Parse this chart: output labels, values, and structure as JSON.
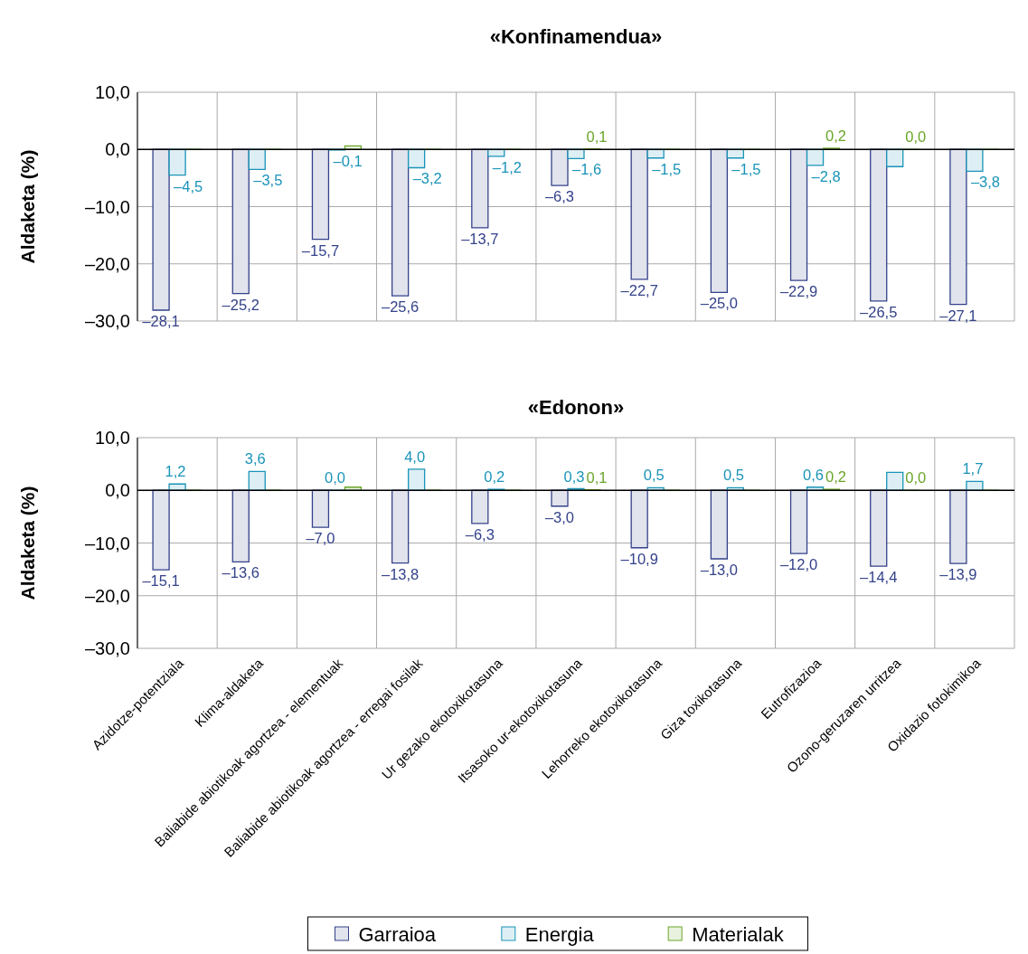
{
  "chart_data": [
    {
      "type": "bar",
      "title": "«Konfinamendua»",
      "ylabel": "Aldaketa (%)",
      "categories": [
        null,
        null,
        null,
        null,
        null,
        null,
        null,
        null,
        null,
        null,
        null
      ],
      "series": [
        {
          "color": "#34428a",
          "values": [
            -28.1,
            -25.2,
            -15.7,
            -25.6,
            -13.7,
            -6.3,
            -22.7,
            -25.0,
            -22.9,
            -26.5,
            -27.1
          ],
          "value_labels": [
            "–28,1",
            "–25,2",
            "–15,7",
            "–25,6",
            "–13,7",
            "–6,3",
            "–22,7",
            "–25,0",
            "–22,9",
            "–26,5",
            "–27,1"
          ]
        },
        {
          "color": "#1a94b8",
          "values": [
            -4.5,
            -3.5,
            -0.1,
            -3.2,
            -1.2,
            -1.6,
            -1.5,
            -1.5,
            -2.8,
            -3.0,
            -3.8
          ],
          "value_labels": [
            "–4,5",
            "–3,5",
            "–0,1",
            "–3,2",
            "–1,2",
            "–1,6",
            "–1,5",
            "–1,5",
            "–2,8",
            null,
            "–3,8"
          ]
        },
        {
          "color": "#6aa52a",
          "values": [
            0,
            0,
            0.6,
            0,
            0,
            0.1,
            0,
            0,
            0.2,
            0.0,
            0
          ],
          "value_labels": [
            null,
            null,
            null,
            null,
            null,
            "0,1",
            null,
            null,
            "0,2",
            "0,0",
            null
          ]
        }
      ],
      "ylim": [
        -30,
        10
      ],
      "yticks": [
        {
          "value": -30,
          "label": "–30,0"
        },
        {
          "value": -20,
          "label": "–20,0"
        },
        {
          "value": -10,
          "label": "–10,0"
        },
        {
          "value": 0,
          "label": "0,0"
        },
        {
          "value": 10,
          "label": "10,0"
        }
      ],
      "grid": true,
      "legend": false
    },
    {
      "type": "bar",
      "title": "«Edonon»",
      "ylabel": "Aldaketa (%)",
      "categories": [
        "Azidotze-potentziala",
        "Klima-aldaketa",
        "Baliabide abiotikoak agortzea - elementuak",
        "Baliabide abiotikoak agortzea - erregai fosilak",
        "Ur gezako ekotoxikotasuna",
        "Itsasoko ur-ekotoxikotasuna",
        "Lehorreko ekotoxikotasuna",
        "Giza toxikotasuna",
        "Eutrofizazioa",
        "Ozono-geruzaren urritzea",
        "Oxidazio fotokimikoa"
      ],
      "series": [
        {
          "name": "Garraioa",
          "color": "#34428a",
          "values": [
            -15.1,
            -13.6,
            -7.0,
            -13.8,
            -6.3,
            -3.0,
            -10.9,
            -13.0,
            -12.0,
            -14.4,
            -13.9
          ],
          "value_labels": [
            "–15,1",
            "–13,6",
            "–7,0",
            "–13,8",
            "–6,3",
            "–3,0",
            "–10,9",
            "–13,0",
            "–12,0",
            "–14,4",
            "–13,9"
          ]
        },
        {
          "name": "Energia",
          "color": "#1a94b8",
          "values": [
            1.2,
            3.6,
            0.0,
            4.0,
            0.2,
            0.3,
            0.5,
            0.5,
            0.6,
            3.4,
            1.7
          ],
          "value_labels": [
            "1,2",
            "3,6",
            "0,0",
            "4,0",
            "0,2",
            "0,3",
            "0,5",
            "0,5",
            "0,6",
            null,
            "1,7"
          ]
        },
        {
          "name": "Materialak",
          "color": "#6aa52a",
          "values": [
            0,
            0,
            0.6,
            0,
            0,
            0.1,
            0,
            0,
            0.2,
            0.0,
            0
          ],
          "value_labels": [
            null,
            null,
            null,
            null,
            null,
            "0,1",
            null,
            null,
            "0,2",
            "0,0",
            null
          ]
        }
      ],
      "ylim": [
        -30,
        10
      ],
      "yticks": [
        {
          "value": -30,
          "label": "–30,0"
        },
        {
          "value": -20,
          "label": "–20,0"
        },
        {
          "value": -10,
          "label": "–10,0"
        },
        {
          "value": 0,
          "label": "0,0"
        },
        {
          "value": 10,
          "label": "10,0"
        }
      ],
      "grid": true,
      "legend": "bottom"
    }
  ]
}
